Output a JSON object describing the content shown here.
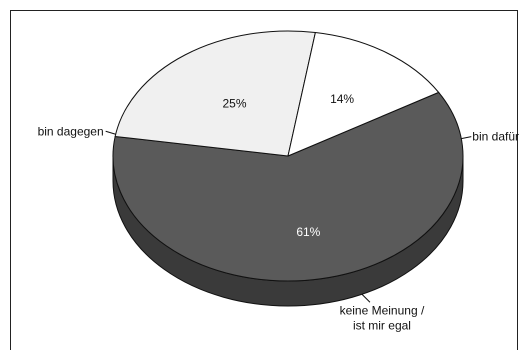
{
  "chart_data": {
    "type": "pie",
    "title": "",
    "style": "3d-tilted",
    "slices": [
      {
        "label": "bin dagegen",
        "value": 61,
        "value_label": "61%",
        "color": "#5a5a5a",
        "side_color": "#3a3a3a"
      },
      {
        "label": "bin dafür",
        "value": 25,
        "value_label": "25%",
        "color": "#f0f0f0",
        "side_color": "#8a8a8a"
      },
      {
        "label_lines": [
          "keine Meinung /",
          "ist mir egal"
        ],
        "value": 14,
        "value_label": "14%",
        "color": "#ffffff",
        "side_color": "#9a9a9a"
      }
    ],
    "legend": "none",
    "grid": false
  }
}
